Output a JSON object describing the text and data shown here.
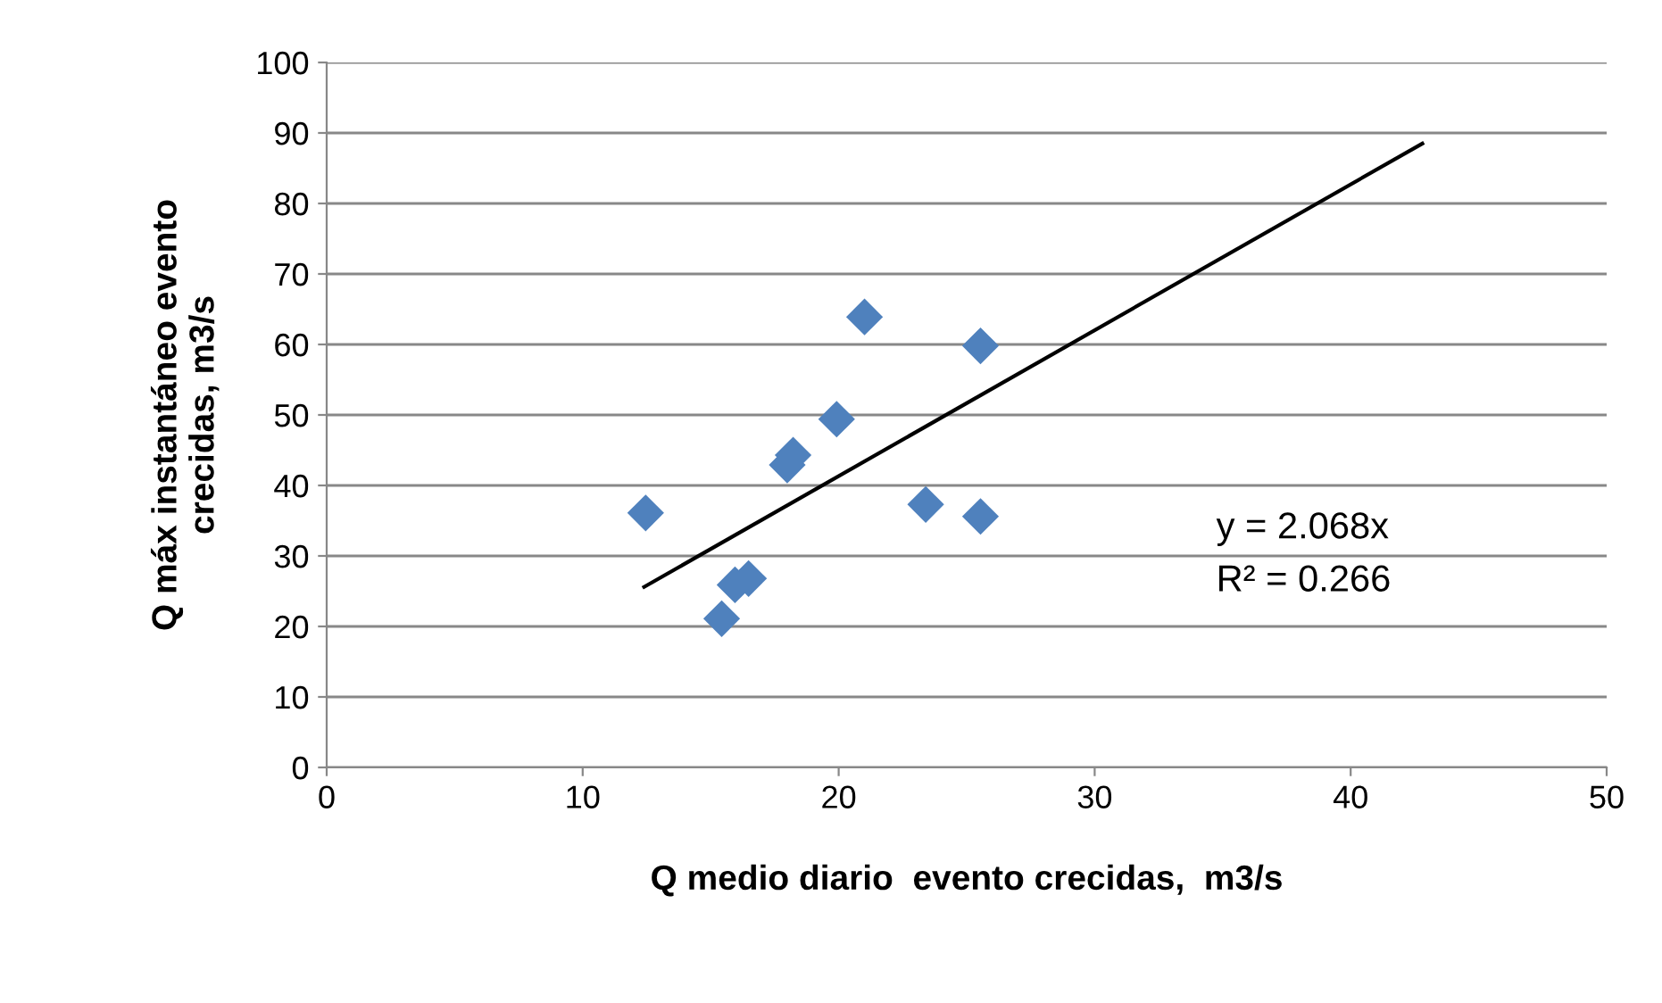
{
  "chart_data": {
    "type": "scatter",
    "xlabel": "Q medio diario  evento crecidas,  m3/s",
    "ylabel": "Q máx instantáneo evento\ncrecidas, m3/s",
    "x": [
      12.46,
      15.43,
      15.95,
      16.48,
      17.99,
      18.22,
      19.92,
      21.01,
      25.54,
      23.4,
      25.54
    ],
    "series": [
      {
        "color": "#4f81bd",
        "marker": "diamond",
        "values": [
          36.1,
          21.1,
          25.9,
          26.8,
          42.9,
          44.3,
          49.4,
          63.9,
          59.8,
          37.3,
          35.6
        ]
      },
      {
        "type": "line",
        "color": "#000000",
        "marker": "none",
        "line_style": "solid",
        "x": [
          12.4,
          42.8
        ],
        "values": [
          25.6,
          88.5
        ]
      }
    ],
    "annotations": [
      "y = 2.068x",
      "R² = 0.266"
    ],
    "xlim": [
      0,
      50
    ],
    "xticks": [
      0,
      10,
      20,
      30,
      40,
      50
    ],
    "ylim": [
      0,
      100
    ],
    "yticks": [
      0,
      10,
      20,
      30,
      40,
      50,
      60,
      70,
      80,
      90,
      100
    ],
    "grid": "y",
    "legend": false
  }
}
